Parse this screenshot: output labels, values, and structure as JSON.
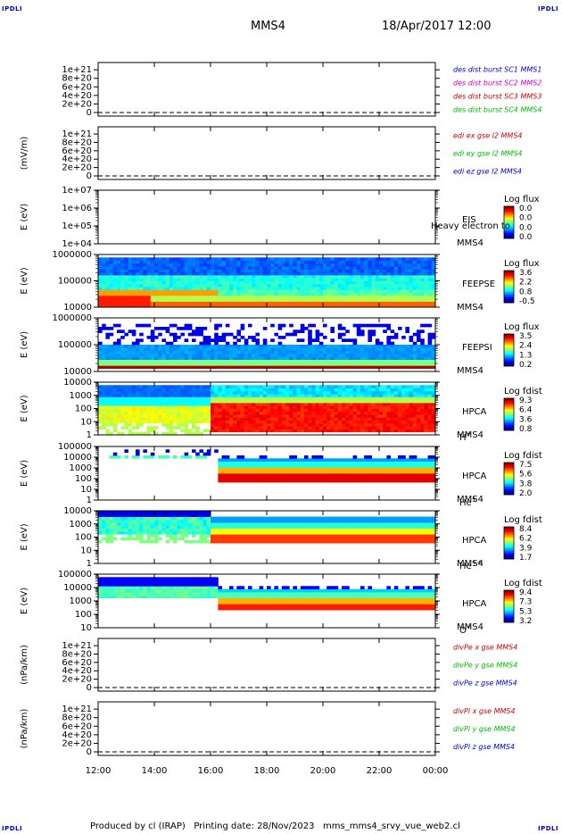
{
  "corner_label": "IPDLI",
  "header": {
    "spacecraft": "MMS4",
    "date": "18/Apr/2017 12:00"
  },
  "footer": {
    "text": "Produced by cl (IRAP)   Printing date: 28/Nov/2023   mms_mms4_srvy_vue_web2.cl"
  },
  "x_axis": {
    "ticks": [
      "12:00",
      "14:00",
      "16:00",
      "18:00",
      "20:00",
      "22:00",
      "00:00"
    ]
  },
  "colors": {
    "red": "#cc0000",
    "green": "#00bb00",
    "blue": "#0000cc",
    "magenta": "#cc00cc"
  },
  "chart_data": [
    {
      "type": "line",
      "ylabel": "",
      "yticks": [
        "0",
        "2e+20",
        "4e+20",
        "6e+20",
        "8e+20",
        "1e+21"
      ],
      "legend": [
        {
          "name": "des dist burst SC1 MMS1",
          "color": "#0000cc"
        },
        {
          "name": "des dist burst SC2 MMS2",
          "color": "#cc00cc"
        },
        {
          "name": "des dist burst SC3 MMS3",
          "color": "#cc0000"
        },
        {
          "name": "des dist burst SC4 MMS4",
          "color": "#00bb00"
        }
      ]
    },
    {
      "type": "line",
      "ylabel": "(mV/m)",
      "yticks": [
        "0",
        "2e+20",
        "4e+20",
        "6e+20",
        "8e+20",
        "1e+21"
      ],
      "legend": [
        {
          "name": "edi ex gse l2 MMS4",
          "color": "#cc0000"
        },
        {
          "name": "edi ey gse l2 MMS4",
          "color": "#00bb00"
        },
        {
          "name": "edi ez gse l2 MMS4",
          "color": "#0000cc"
        }
      ]
    },
    {
      "type": "heatmap",
      "ylabel": "E (eV)",
      "yticks": [
        "1e+04",
        "1e+05",
        "1e+06",
        "1e+07"
      ],
      "labels": [
        "EIS",
        "MMS4"
      ],
      "overlay": "Heavy electron to",
      "cbar_title": "Log flux",
      "cbar_ticks": [
        "0.0",
        "0.0",
        "0.0",
        "0.0"
      ],
      "empty": true
    },
    {
      "type": "heatmap",
      "ylabel": "E (eV)",
      "yticks": [
        "10000",
        "100000",
        "1000000"
      ],
      "labels": [
        "FEEPSE",
        "MMS4"
      ],
      "cbar_title": "Log flux",
      "cbar_ticks": [
        "3.6",
        "2.2",
        "0.8",
        "-0.5"
      ]
    },
    {
      "type": "heatmap",
      "ylabel": "E (eV)",
      "yticks": [
        "10000",
        "100000",
        "1000000"
      ],
      "labels": [
        "FEEPSI",
        "MMS4"
      ],
      "cbar_title": "Log flux",
      "cbar_ticks": [
        "3.5",
        "2.4",
        "1.3",
        "0.2"
      ]
    },
    {
      "type": "heatmap",
      "ylabel": "E (eV)",
      "yticks": [
        "1",
        "10",
        "100",
        "1000",
        "10000"
      ],
      "labels": [
        "HPCA",
        "MMS4",
        "H+"
      ],
      "cbar_title": "Log fdist",
      "cbar_ticks": [
        "9.3",
        "6.4",
        "3.6",
        "0.8"
      ]
    },
    {
      "type": "heatmap",
      "ylabel": "E (eV)",
      "yticks": [
        "1",
        "10",
        "100",
        "1000",
        "10000",
        "100000"
      ],
      "labels": [
        "HPCA",
        "MMS4",
        "He+"
      ],
      "cbar_title": "Log fdist",
      "cbar_ticks": [
        "7.5",
        "5.6",
        "3.8",
        "2.0"
      ]
    },
    {
      "type": "heatmap",
      "ylabel": "E (eV)",
      "yticks": [
        "1",
        "10",
        "100",
        "1000",
        "10000"
      ],
      "labels": [
        "HPCA",
        "MMS4",
        "He++"
      ],
      "cbar_title": "Log fdist",
      "cbar_ticks": [
        "8.4",
        "6.2",
        "3.9",
        "1.7"
      ]
    },
    {
      "type": "heatmap",
      "ylabel": "E (eV)",
      "yticks": [
        "10",
        "100",
        "1000",
        "10000",
        "100000"
      ],
      "labels": [
        "HPCA",
        "MMS4",
        "O+"
      ],
      "cbar_title": "Log fdist",
      "cbar_ticks": [
        "9.4",
        "7.3",
        "5.3",
        "3.2"
      ]
    },
    {
      "type": "line",
      "ylabel": "(nPa/km)",
      "yticks": [
        "0",
        "2e+20",
        "4e+20",
        "6e+20",
        "8e+20",
        "1e+21"
      ],
      "legend": [
        {
          "name": "divPe x gse MMS4",
          "color": "#cc0000"
        },
        {
          "name": "divPe y gse MMS4",
          "color": "#00bb00"
        },
        {
          "name": "divPe z gse MMS4",
          "color": "#0000cc"
        }
      ]
    },
    {
      "type": "line",
      "ylabel": "(nPa/km)",
      "yticks": [
        "0",
        "2e+20",
        "4e+20",
        "6e+20",
        "8e+20",
        "1e+21"
      ],
      "legend": [
        {
          "name": "divPi x gse MMS4",
          "color": "#cc0000"
        },
        {
          "name": "divPi y gse MMS4",
          "color": "#00bb00"
        },
        {
          "name": "divPi z gse MMS4",
          "color": "#0000cc"
        }
      ]
    }
  ]
}
